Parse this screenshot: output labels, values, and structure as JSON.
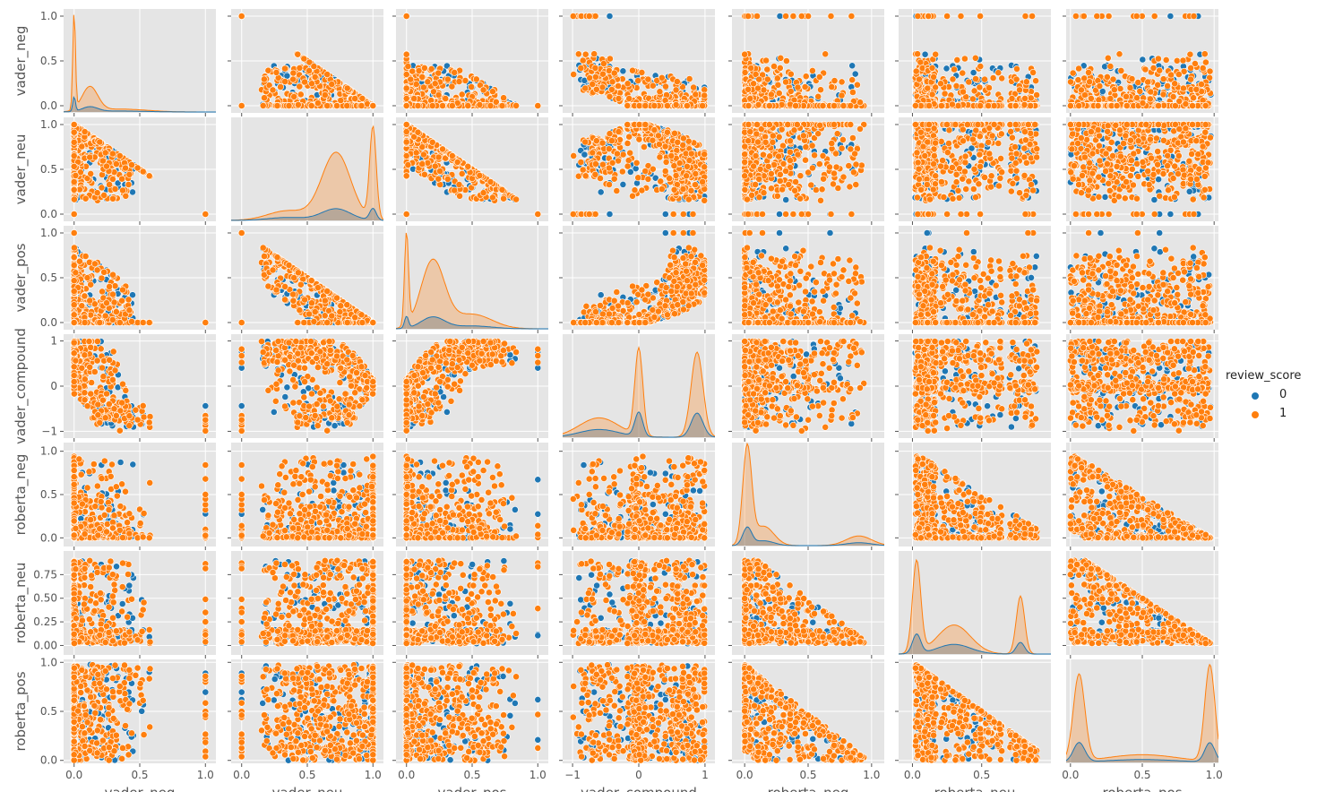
{
  "chart_data": {
    "type": "scatter",
    "subtype": "pairplot",
    "variables": [
      "vader_neg",
      "vader_neu",
      "vader_pos",
      "vader_compound",
      "roberta_neg",
      "roberta_neu",
      "roberta_pos"
    ],
    "axis_labels": [
      "vader_neg",
      "vader_neu",
      "vader_pos",
      "vader_compound",
      "roberta_neg",
      "roberta_neu",
      "roberta_pos"
    ],
    "ranges": {
      "vader_neg": [
        -0.08,
        1.08
      ],
      "vader_neu": [
        -0.08,
        1.08
      ],
      "vader_pos": [
        -0.08,
        1.08
      ],
      "vader_compound": [
        -1.15,
        1.15
      ],
      "roberta_neg": [
        -0.1,
        1.1
      ],
      "roberta_neu": [
        -0.1,
        1.0
      ],
      "roberta_pos": [
        -0.03,
        1.03
      ]
    },
    "ticks": {
      "vader_neg": {
        "values": [
          0,
          0.5,
          1.0
        ],
        "labels": [
          "0.0",
          "0.5",
          "1.0"
        ]
      },
      "vader_neu": {
        "values": [
          0,
          0.5,
          1.0
        ],
        "labels": [
          "0.0",
          "0.5",
          "1.0"
        ]
      },
      "vader_pos": {
        "values": [
          0,
          0.5,
          1.0
        ],
        "labels": [
          "0.0",
          "0.5",
          "1.0"
        ]
      },
      "vader_compound": {
        "values": [
          -1,
          0,
          1
        ],
        "labels": [
          "−1",
          "0",
          "1"
        ]
      },
      "roberta_neg": {
        "values": [
          0,
          0.5,
          1.0
        ],
        "labels": [
          "0.0",
          "0.5",
          "1.0"
        ]
      },
      "roberta_neu": {
        "values": [
          0,
          0.25,
          0.5,
          0.75
        ],
        "labels": [
          "0.00",
          "0.25",
          "0.50",
          "0.75"
        ]
      },
      "roberta_pos": {
        "values": [
          0,
          0.5,
          1.0
        ],
        "labels": [
          "0.0",
          "0.5",
          "1.0"
        ]
      }
    },
    "x_ticks": {
      "vader_neg": {
        "values": [
          0,
          0.5,
          1.0
        ],
        "labels": [
          "0.0",
          "0.5",
          "1.0"
        ]
      },
      "vader_neu": {
        "values": [
          0,
          0.5,
          1.0
        ],
        "labels": [
          "0.0",
          "0.5",
          "1.0"
        ]
      },
      "vader_pos": {
        "values": [
          0,
          0.5,
          1.0
        ],
        "labels": [
          "0.0",
          "0.5",
          "1.0"
        ]
      },
      "vader_compound": {
        "values": [
          -1,
          0,
          1
        ],
        "labels": [
          "−1",
          "0",
          "1"
        ]
      },
      "roberta_neg": {
        "values": [
          0,
          0.5,
          1.0
        ],
        "labels": [
          "0.0",
          "0.5",
          "1.0"
        ]
      },
      "roberta_neu": {
        "values": [
          0,
          0.5
        ],
        "labels": [
          "0.0",
          "0.5"
        ]
      },
      "roberta_pos": {
        "values": [
          0,
          0.5,
          1.0
        ],
        "labels": [
          "0.0",
          "0.5",
          "1.0"
        ]
      }
    },
    "hue": "review_score",
    "series": [
      {
        "name": "0",
        "color": "#1f77b4"
      },
      {
        "name": "1",
        "color": "#ff7f0e"
      }
    ],
    "diagonal": "kde",
    "kde": {
      "vader_neg": {
        "peaks": [
          [
            0.0,
            0.01,
            1.0,
            0.15
          ],
          [
            0.12,
            0.06,
            0.25,
            0.05
          ],
          [
            0.35,
            0.2,
            0.03,
            0.01
          ]
        ]
      },
      "vader_neu": {
        "peaks": [
          [
            0.72,
            0.11,
            0.7,
            0.12
          ],
          [
            1.0,
            0.025,
            0.95,
            0.12
          ],
          [
            0.35,
            0.15,
            0.1,
            0.03
          ]
        ]
      },
      "vader_pos": {
        "peaks": [
          [
            0.0,
            0.015,
            0.95,
            0.12
          ],
          [
            0.2,
            0.09,
            0.7,
            0.12
          ],
          [
            0.5,
            0.15,
            0.15,
            0.03
          ]
        ]
      },
      "vader_compound": {
        "peaks": [
          [
            0.0,
            0.06,
            0.9,
            0.25
          ],
          [
            0.88,
            0.09,
            0.88,
            0.25
          ],
          [
            -0.6,
            0.3,
            0.2,
            0.08
          ]
        ]
      },
      "roberta_neg": {
        "peaks": [
          [
            0.02,
            0.035,
            1.0,
            0.18
          ],
          [
            0.15,
            0.08,
            0.2,
            0.05
          ],
          [
            0.9,
            0.1,
            0.1,
            0.03
          ]
        ]
      },
      "roberta_neu": {
        "peaks": [
          [
            0.03,
            0.03,
            0.95,
            0.2
          ],
          [
            0.3,
            0.12,
            0.3,
            0.1
          ],
          [
            0.78,
            0.03,
            0.6,
            0.12
          ]
        ]
      },
      "roberta_pos": {
        "peaks": [
          [
            0.06,
            0.04,
            0.9,
            0.2
          ],
          [
            0.97,
            0.035,
            1.0,
            0.2
          ],
          [
            0.5,
            0.25,
            0.08,
            0.03
          ]
        ]
      }
    },
    "legend": {
      "title": "review_score",
      "entries": [
        "0",
        "1"
      ],
      "position": "right"
    },
    "grid": true,
    "style": "ggplot"
  }
}
